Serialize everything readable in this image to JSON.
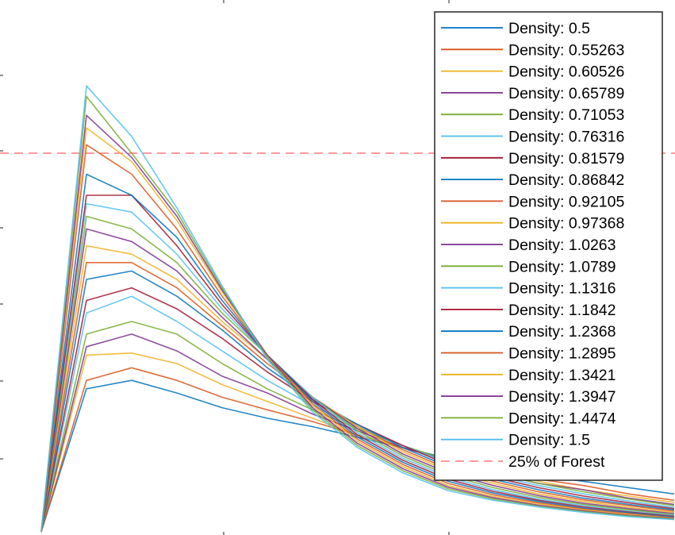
{
  "chart_data": {
    "type": "line",
    "title": "",
    "xlabel": "",
    "ylabel": "",
    "x": [
      0,
      1,
      2,
      3,
      4,
      5,
      6,
      7,
      8,
      9,
      10,
      11,
      12,
      13,
      14
    ],
    "series": [
      {
        "name": "Density: 0.5",
        "color": "#0072BD",
        "values": [
          0,
          0.34,
          0.36,
          0.33,
          0.295,
          0.27,
          0.25,
          0.225,
          0.2,
          0.175,
          0.155,
          0.135,
          0.12,
          0.105,
          0.09
        ]
      },
      {
        "name": "Density: 0.55263",
        "color": "#D95319",
        "values": [
          0,
          0.36,
          0.39,
          0.36,
          0.32,
          0.29,
          0.262,
          0.23,
          0.2,
          0.17,
          0.145,
          0.125,
          0.11,
          0.09,
          0.075
        ]
      },
      {
        "name": "Density: 0.60526",
        "color": "#EDB120",
        "values": [
          0,
          0.42,
          0.425,
          0.4,
          0.35,
          0.31,
          0.27,
          0.23,
          0.2,
          0.17,
          0.145,
          0.12,
          0.1,
          0.085,
          0.07
        ]
      },
      {
        "name": "Density: 0.65789",
        "color": "#7E2F8E",
        "values": [
          0,
          0.44,
          0.47,
          0.43,
          0.37,
          0.33,
          0.28,
          0.24,
          0.2,
          0.17,
          0.14,
          0.115,
          0.1,
          0.08,
          0.065
        ]
      },
      {
        "name": "Density: 0.71053",
        "color": "#77AC30",
        "values": [
          0,
          0.47,
          0.5,
          0.47,
          0.4,
          0.34,
          0.29,
          0.245,
          0.205,
          0.17,
          0.14,
          0.115,
          0.095,
          0.078,
          0.062
        ]
      },
      {
        "name": "Density: 0.76316",
        "color": "#4DBEEE",
        "values": [
          0,
          0.52,
          0.56,
          0.5,
          0.43,
          0.36,
          0.3,
          0.25,
          0.205,
          0.165,
          0.135,
          0.11,
          0.09,
          0.073,
          0.058
        ]
      },
      {
        "name": "Density: 0.81579",
        "color": "#A2142F",
        "values": [
          0,
          0.55,
          0.58,
          0.53,
          0.46,
          0.38,
          0.31,
          0.255,
          0.205,
          0.16,
          0.13,
          0.105,
          0.085,
          0.069,
          0.055
        ]
      },
      {
        "name": "Density: 0.86842",
        "color": "#0072BD",
        "values": [
          0,
          0.6,
          0.62,
          0.56,
          0.48,
          0.39,
          0.315,
          0.255,
          0.2,
          0.155,
          0.125,
          0.1,
          0.08,
          0.065,
          0.052
        ]
      },
      {
        "name": "Density: 0.92105",
        "color": "#D95319",
        "values": [
          0,
          0.64,
          0.64,
          0.58,
          0.49,
          0.4,
          0.32,
          0.25,
          0.195,
          0.15,
          0.12,
          0.095,
          0.076,
          0.062,
          0.049
        ]
      },
      {
        "name": "Density: 0.97368",
        "color": "#EDB120",
        "values": [
          0,
          0.68,
          0.66,
          0.6,
          0.5,
          0.41,
          0.32,
          0.25,
          0.19,
          0.145,
          0.115,
          0.09,
          0.072,
          0.058,
          0.046
        ]
      },
      {
        "name": "Density: 1.0263",
        "color": "#7E2F8E",
        "values": [
          0,
          0.72,
          0.69,
          0.62,
          0.51,
          0.41,
          0.32,
          0.245,
          0.185,
          0.14,
          0.11,
          0.086,
          0.068,
          0.055,
          0.043
        ]
      },
      {
        "name": "Density: 1.0789",
        "color": "#77AC30",
        "values": [
          0,
          0.75,
          0.72,
          0.64,
          0.52,
          0.42,
          0.32,
          0.24,
          0.18,
          0.135,
          0.105,
          0.082,
          0.065,
          0.052,
          0.041
        ]
      },
      {
        "name": "Density: 1.1316",
        "color": "#4DBEEE",
        "values": [
          0,
          0.78,
          0.76,
          0.66,
          0.53,
          0.42,
          0.32,
          0.235,
          0.175,
          0.13,
          0.1,
          0.078,
          0.062,
          0.049,
          0.039
        ]
      },
      {
        "name": "Density: 1.1842",
        "color": "#A2142F",
        "values": [
          0,
          0.8,
          0.8,
          0.68,
          0.54,
          0.42,
          0.315,
          0.23,
          0.17,
          0.125,
          0.096,
          0.075,
          0.059,
          0.047,
          0.037
        ]
      },
      {
        "name": "Density: 1.2368",
        "color": "#0072BD",
        "values": [
          0,
          0.85,
          0.8,
          0.7,
          0.55,
          0.42,
          0.31,
          0.225,
          0.165,
          0.12,
          0.092,
          0.072,
          0.056,
          0.045,
          0.035
        ]
      },
      {
        "name": "Density: 1.2895",
        "color": "#D95319",
        "values": [
          0,
          0.92,
          0.85,
          0.72,
          0.56,
          0.42,
          0.305,
          0.22,
          0.16,
          0.115,
          0.088,
          0.069,
          0.054,
          0.043,
          0.033
        ]
      },
      {
        "name": "Density: 1.3421",
        "color": "#EDB120",
        "values": [
          0,
          0.96,
          0.88,
          0.74,
          0.57,
          0.42,
          0.3,
          0.215,
          0.155,
          0.11,
          0.084,
          0.066,
          0.052,
          0.041,
          0.032
        ]
      },
      {
        "name": "Density: 1.3947",
        "color": "#7E2F8E",
        "values": [
          0,
          0.99,
          0.89,
          0.75,
          0.575,
          0.42,
          0.295,
          0.21,
          0.15,
          0.106,
          0.081,
          0.063,
          0.05,
          0.039,
          0.031
        ]
      },
      {
        "name": "Density: 1.4474",
        "color": "#77AC30",
        "values": [
          0,
          1.035,
          0.9,
          0.76,
          0.58,
          0.415,
          0.29,
          0.205,
          0.145,
          0.102,
          0.078,
          0.061,
          0.048,
          0.038,
          0.03
        ]
      },
      {
        "name": "Density: 1.5",
        "color": "#4DBEEE",
        "values": [
          0,
          1.06,
          0.94,
          0.77,
          0.585,
          0.41,
          0.285,
          0.2,
          0.14,
          0.098,
          0.075,
          0.059,
          0.046,
          0.036,
          0.029
        ]
      }
    ],
    "reference_line": {
      "name": "25% of Forest",
      "y": 0.9,
      "color": "#FF9999",
      "style": "dashed"
    },
    "xlim": [
      0,
      14
    ],
    "ylim": [
      0,
      1.28
    ],
    "grid": false,
    "legend": "top-right"
  }
}
